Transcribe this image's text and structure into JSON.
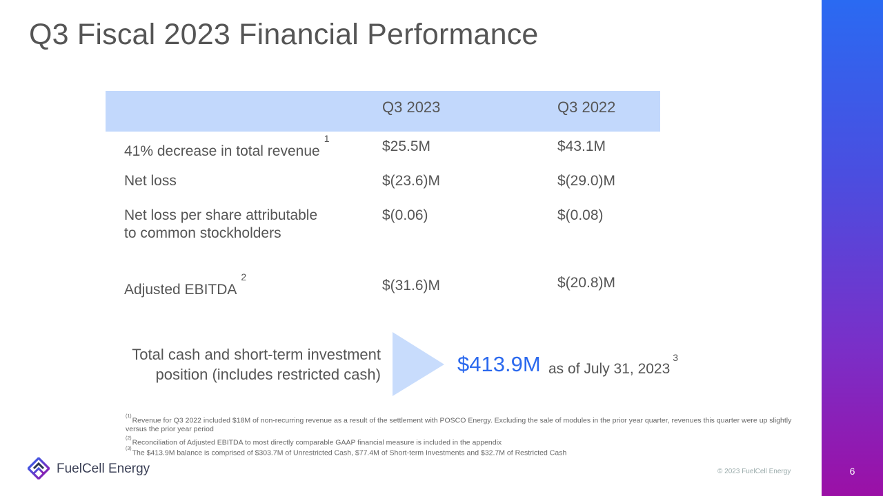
{
  "title": "Q3 Fiscal 2023 Financial Performance",
  "table": {
    "headers": [
      "",
      "Q3 2023",
      "Q3 2022"
    ],
    "rows": [
      {
        "label": "41% decrease in total revenue",
        "footnote": "1",
        "q3_2023": "$25.5M",
        "q3_2022": "$43.1M"
      },
      {
        "label": "Net loss",
        "footnote": "",
        "q3_2023": "$(23.6)M",
        "q3_2022": "$(29.0)M"
      },
      {
        "label_line1": "Net loss per share attributable",
        "label_line2": "to common stockholders",
        "q3_2023": "$(0.06)",
        "q3_2022": "$(0.08)"
      },
      {
        "label": "Adjusted EBITDA",
        "footnote": "2",
        "q3_2023": "$(31.6)M",
        "q3_2022": "$(20.8)M"
      }
    ]
  },
  "cash": {
    "label_line1": "Total cash and short-term investment",
    "label_line2": "position (includes restricted cash)",
    "value": "$413.9M",
    "as_of": "as of July 31, 2023",
    "footnote": "3"
  },
  "footnotes": [
    {
      "marker": "(1)",
      "text": "Revenue for Q3 2022 included $18M of non-recurring revenue as a result of the settlement with POSCO Energy. Excluding the sale of modules in the prior year quarter, revenues this quarter were up slightly versus the prior year period"
    },
    {
      "marker": "(2)",
      "text": "Reconciliation of Adjusted EBITDA to most directly comparable GAAP financial measure is included in the appendix"
    },
    {
      "marker": "(3)",
      "text": "The $413.9M balance is comprised of $303.7M of Unrestricted Cash, $77.4M of Short-term Investments and $32.7M of Restricted Cash"
    }
  ],
  "brand": {
    "name": "FuelCell Energy",
    "copyright": "© 2023 FuelCell Energy",
    "icon": "fuelcell-logo-icon"
  },
  "page_number": "6",
  "colors": {
    "header_fill": "#c2d8fc",
    "accent": "#2b69ee",
    "sidebar_top": "#2a6af2",
    "sidebar_bottom": "#9b10a6"
  }
}
